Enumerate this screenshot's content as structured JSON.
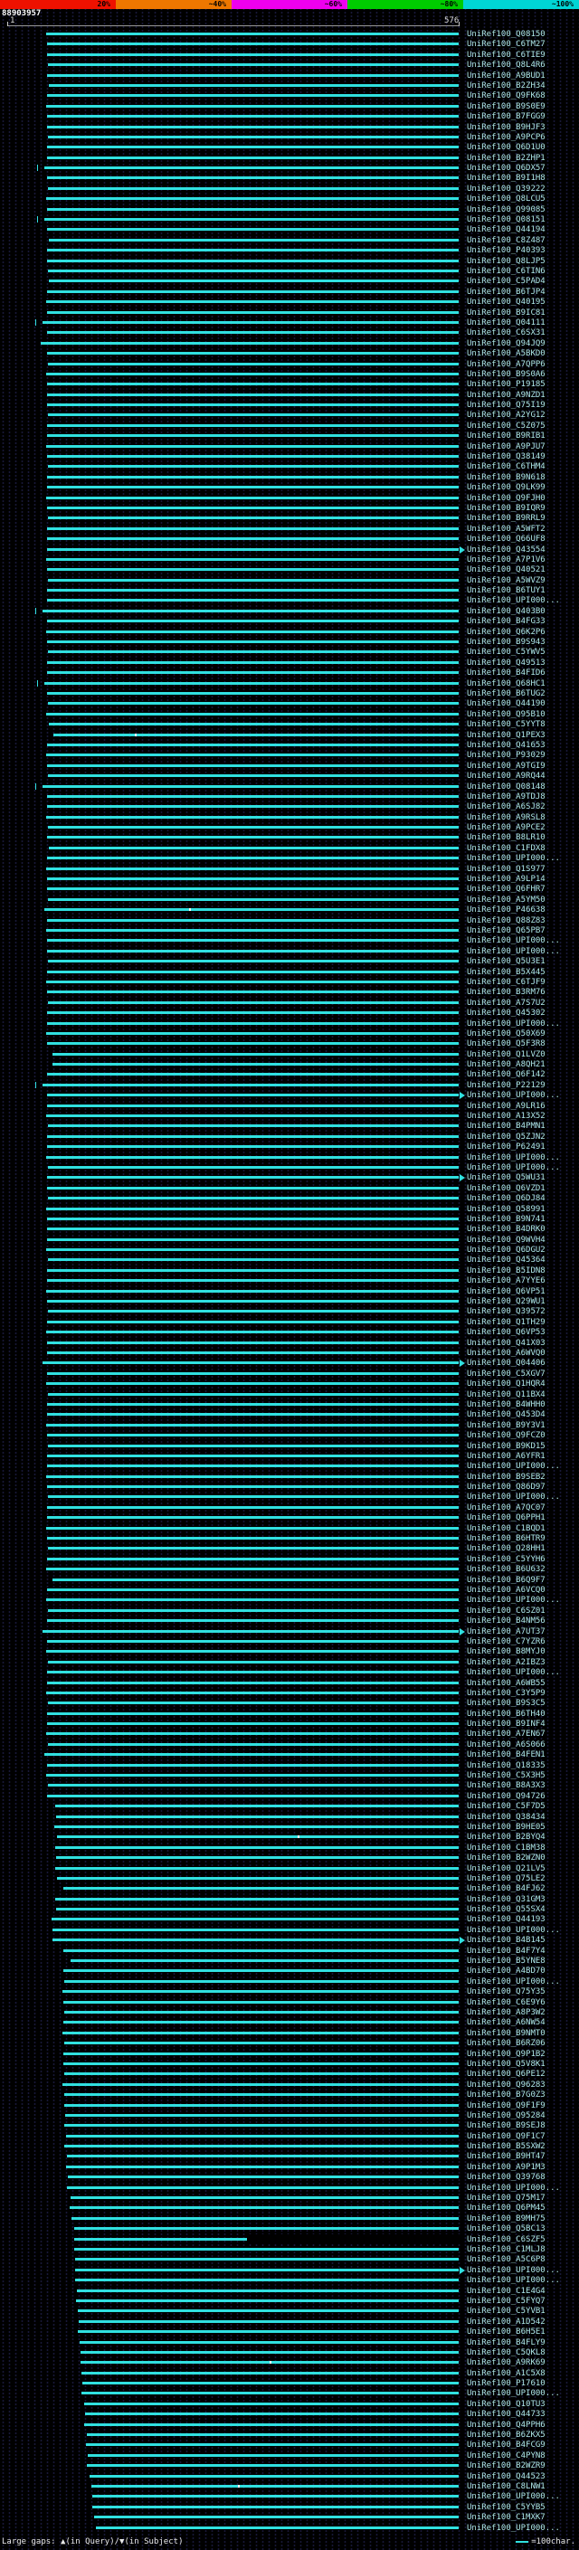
{
  "colors": {
    "background": "#000000",
    "pattern_dot": "#181838",
    "bar": "#30e0e0",
    "label": "#aee8e8",
    "ruler": "#9a9a9a",
    "scale_text": "#000000",
    "job_id_text": "#ffffff",
    "gap_dot": "#ffffff"
  },
  "chart_data": {
    "type": "bar",
    "orientation": "horizontal",
    "title": "BLAST hit graphical overview",
    "query_range": [
      1,
      576
    ],
    "job_id": "88903957",
    "ruler": {
      "start_label": "1",
      "end_label": "576"
    },
    "identity_scale": {
      "segments": [
        {
          "label": "20%",
          "color": "#ee1100"
        },
        {
          "label": "~40%",
          "color": "#ee7700"
        },
        {
          "label": "~60%",
          "color": "#ee00ee"
        },
        {
          "label": "~80%",
          "color": "#00cc00"
        },
        {
          "label": "~100%",
          "color": "#00d5d5"
        }
      ]
    },
    "legend": {
      "gaps_label": "Large gaps: ▲(in Query)/▼(in Subject)",
      "scale_label": "=100char."
    },
    "hits": [
      {
        "label": "UniRef100_Q08150",
        "start": 49
      },
      {
        "label": "UniRef100_C6TM27",
        "start": 50
      },
      {
        "label": "UniRef100_C6TIE9",
        "start": 50
      },
      {
        "label": "UniRef100_Q8L4R6",
        "start": 51
      },
      {
        "label": "UniRef100_A9BUD1",
        "start": 50
      },
      {
        "label": "UniRef100_B2ZH34",
        "start": 52
      },
      {
        "label": "UniRef100_Q9FK68",
        "start": 50
      },
      {
        "label": "UniRef100_B9S0E9",
        "start": 49
      },
      {
        "label": "UniRef100_B7FGG9",
        "start": 50
      },
      {
        "label": "UniRef100_B9HJF3",
        "start": 50
      },
      {
        "label": "UniRef100_A9PCP6",
        "start": 51
      },
      {
        "label": "UniRef100_Q6D1U0",
        "start": 50
      },
      {
        "label": "UniRef100_B2ZHP1",
        "start": 50
      },
      {
        "label": "UniRef100_Q6DX57",
        "start": 46,
        "tick": true
      },
      {
        "label": "UniRef100_B9I1H8",
        "start": 50
      },
      {
        "label": "UniRef100_Q39222",
        "start": 51
      },
      {
        "label": "UniRef100_Q8LCU5",
        "start": 49
      },
      {
        "label": "UniRef100_Q99085",
        "start": 50
      },
      {
        "label": "UniRef100_Q08151",
        "start": 46,
        "tick": true
      },
      {
        "label": "UniRef100_Q44194",
        "start": 50
      },
      {
        "label": "UniRef100_C8Z487",
        "start": 52
      },
      {
        "label": "UniRef100_P40393",
        "start": 50
      },
      {
        "label": "UniRef100_Q8LJP5",
        "start": 50
      },
      {
        "label": "UniRef100_C6TIN6",
        "start": 51
      },
      {
        "label": "UniRef100_C5PAD4",
        "start": 52
      },
      {
        "label": "UniRef100_B6TJP4",
        "start": 50
      },
      {
        "label": "UniRef100_Q40195",
        "start": 49
      },
      {
        "label": "UniRef100_B9IC81",
        "start": 50
      },
      {
        "label": "UniRef100_Q04111",
        "start": 44,
        "tick": true
      },
      {
        "label": "UniRef100_C6SX31",
        "start": 50
      },
      {
        "label": "UniRef100_Q94JQ9",
        "start": 42
      },
      {
        "label": "UniRef100_A5BKD0",
        "start": 50
      },
      {
        "label": "UniRef100_A7QPP6",
        "start": 51
      },
      {
        "label": "UniRef100_B9S0A6",
        "start": 49
      },
      {
        "label": "UniRef100_P19185",
        "start": 50
      },
      {
        "label": "UniRef100_A9NZD1",
        "start": 50
      },
      {
        "label": "UniRef100_Q75I19",
        "start": 50
      },
      {
        "label": "UniRef100_A2YG12",
        "start": 51
      },
      {
        "label": "UniRef100_C5Z075",
        "start": 50
      },
      {
        "label": "UniRef100_B9RIB1",
        "start": 50
      },
      {
        "label": "UniRef100_A9PJU7",
        "start": 49
      },
      {
        "label": "UniRef100_Q38149",
        "start": 50
      },
      {
        "label": "UniRef100_C6THM4",
        "start": 51
      },
      {
        "label": "UniRef100_B9N618",
        "start": 50
      },
      {
        "label": "UniRef100_Q9LK99",
        "start": 50
      },
      {
        "label": "UniRef100_Q9FJH0",
        "start": 49
      },
      {
        "label": "UniRef100_B9IQR9",
        "start": 50
      },
      {
        "label": "UniRef100_B9RRL9",
        "start": 51
      },
      {
        "label": "UniRef100_A5WFT2",
        "start": 50
      },
      {
        "label": "UniRef100_Q66UF8",
        "start": 50
      },
      {
        "label": "UniRef100_Q43554",
        "start": 50,
        "arrow": true
      },
      {
        "label": "UniRef100_A7P1V6",
        "start": 49
      },
      {
        "label": "UniRef100_Q40521",
        "start": 50
      },
      {
        "label": "UniRef100_A5WVZ9",
        "start": 51
      },
      {
        "label": "UniRef100_B6TUY1",
        "start": 50
      },
      {
        "label": "UniRef100_UPI000...",
        "start": 50
      },
      {
        "label": "UniRef100_Q403B0",
        "start": 44,
        "tick": true
      },
      {
        "label": "UniRef100_B4FG33",
        "start": 50
      },
      {
        "label": "UniRef100_Q6K2P6",
        "start": 49
      },
      {
        "label": "UniRef100_B9S943",
        "start": 50
      },
      {
        "label": "UniRef100_C5YWV5",
        "start": 51
      },
      {
        "label": "UniRef100_Q49513",
        "start": 50
      },
      {
        "label": "UniRef100_B4FID6",
        "start": 50
      },
      {
        "label": "UniRef100_Q68HC1",
        "start": 46,
        "tick": true
      },
      {
        "label": "UniRef100_B6TUG2",
        "start": 50
      },
      {
        "label": "UniRef100_Q44190",
        "start": 51
      },
      {
        "label": "UniRef100_Q95B10",
        "start": 49
      },
      {
        "label": "UniRef100_C5YYT8",
        "start": 52
      },
      {
        "label": "UniRef100_Q1PEX3",
        "start": 58,
        "dots": [
          0.2
        ]
      },
      {
        "label": "UniRef100_Q41653",
        "start": 50
      },
      {
        "label": "UniRef100_P93029",
        "start": 49
      },
      {
        "label": "UniRef100_A9TGI9",
        "start": 50
      },
      {
        "label": "UniRef100_A9RQ44",
        "start": 51
      },
      {
        "label": "UniRef100_Q08148",
        "start": 44,
        "tick": true
      },
      {
        "label": "UniRef100_A9TDJ8",
        "start": 50
      },
      {
        "label": "UniRef100_A6SJ82",
        "start": 50
      },
      {
        "label": "UniRef100_A9RSL8",
        "start": 49
      },
      {
        "label": "UniRef100_A9PCE2",
        "start": 51
      },
      {
        "label": "UniRef100_B8LR10",
        "start": 50
      },
      {
        "label": "UniRef100_C1FDX8",
        "start": 52
      },
      {
        "label": "UniRef100_UPI000...",
        "start": 50
      },
      {
        "label": "UniRef100_Q1S977",
        "start": 49
      },
      {
        "label": "UniRef100_A9LP14",
        "start": 50
      },
      {
        "label": "UniRef100_Q6FHR7",
        "start": 50
      },
      {
        "label": "UniRef100_A5YM50",
        "start": 51
      },
      {
        "label": "UniRef100_P46638",
        "start": 46,
        "dots": [
          0.35
        ]
      },
      {
        "label": "UniRef100_Q88Z83",
        "start": 50
      },
      {
        "label": "UniRef100_Q65PB7",
        "start": 49
      },
      {
        "label": "UniRef100_UPI000...",
        "start": 50
      },
      {
        "label": "UniRef100_UPI000...",
        "start": 50
      },
      {
        "label": "UniRef100_Q5U3E1",
        "start": 51
      },
      {
        "label": "UniRef100_B5X445",
        "start": 50
      },
      {
        "label": "UniRef100_C6TJF9",
        "start": 49
      },
      {
        "label": "UniRef100_B3RM76",
        "start": 50
      },
      {
        "label": "UniRef100_A7S7U2",
        "start": 51
      },
      {
        "label": "UniRef100_Q45302",
        "start": 50
      },
      {
        "label": "UniRef100_UPI000...",
        "start": 50
      },
      {
        "label": "UniRef100_Q50X69",
        "start": 49
      },
      {
        "label": "UniRef100_Q5F3R8",
        "start": 50
      },
      {
        "label": "UniRef100_Q1LVZ0",
        "start": 57
      },
      {
        "label": "UniRef100_A8QH21",
        "start": 57
      },
      {
        "label": "UniRef100_Q6F142",
        "start": 50
      },
      {
        "label": "UniRef100_P22129",
        "start": 44,
        "tick": true
      },
      {
        "label": "UniRef100_UPI000...",
        "start": 50,
        "arrow": true
      },
      {
        "label": "UniRef100_A9LR16",
        "start": 50
      },
      {
        "label": "UniRef100_A13X52",
        "start": 49
      },
      {
        "label": "UniRef100_B4PMN1",
        "start": 51
      },
      {
        "label": "UniRef100_Q5ZJN2",
        "start": 50
      },
      {
        "label": "UniRef100_P62491",
        "start": 50
      },
      {
        "label": "UniRef100_UPI000...",
        "start": 49
      },
      {
        "label": "UniRef100_UPI000...",
        "start": 51
      },
      {
        "label": "UniRef100_Q5WU31",
        "start": 50,
        "arrow": true
      },
      {
        "label": "UniRef100_Q6VZD1",
        "start": 50
      },
      {
        "label": "UniRef100_Q6DJ84",
        "start": 51
      },
      {
        "label": "UniRef100_Q58991",
        "start": 49
      },
      {
        "label": "UniRef100_B9N741",
        "start": 50
      },
      {
        "label": "UniRef100_B4DRK0",
        "start": 50
      },
      {
        "label": "UniRef100_Q9WVH4",
        "start": 50
      },
      {
        "label": "UniRef100_Q6DGU2",
        "start": 49
      },
      {
        "label": "UniRef100_Q45364",
        "start": 51
      },
      {
        "label": "UniRef100_B5IDN8",
        "start": 50
      },
      {
        "label": "UniRef100_A7YYE6",
        "start": 50
      },
      {
        "label": "UniRef100_Q6VP51",
        "start": 49
      },
      {
        "label": "UniRef100_Q29WU1",
        "start": 50
      },
      {
        "label": "UniRef100_Q39572",
        "start": 51
      },
      {
        "label": "UniRef100_Q1TH29",
        "start": 50
      },
      {
        "label": "UniRef100_Q6VP53",
        "start": 49
      },
      {
        "label": "UniRef100_Q41X03",
        "start": 50
      },
      {
        "label": "UniRef100_A6WVQ0",
        "start": 50
      },
      {
        "label": "UniRef100_Q04406",
        "start": 44,
        "arrow": true
      },
      {
        "label": "UniRef100_C5XGV7",
        "start": 50
      },
      {
        "label": "UniRef100_Q1HQR4",
        "start": 49
      },
      {
        "label": "UniRef100_Q11BX4",
        "start": 51
      },
      {
        "label": "UniRef100_B4WHH0",
        "start": 50
      },
      {
        "label": "UniRef100_Q453D4",
        "start": 50
      },
      {
        "label": "UniRef100_B9Y3V1",
        "start": 49
      },
      {
        "label": "UniRef100_Q9FCZ0",
        "start": 50
      },
      {
        "label": "UniRef100_B9KD15",
        "start": 51
      },
      {
        "label": "UniRef100_A6YFR1",
        "start": 50
      },
      {
        "label": "UniRef100_UPI000...",
        "start": 50
      },
      {
        "label": "UniRef100_B9SEB2",
        "start": 49
      },
      {
        "label": "UniRef100_Q86D97",
        "start": 50
      },
      {
        "label": "UniRef100_UPI000...",
        "start": 51
      },
      {
        "label": "UniRef100_A7QC07",
        "start": 50
      },
      {
        "label": "UniRef100_Q6PPH1",
        "start": 50
      },
      {
        "label": "UniRef100_C1BQD1",
        "start": 49
      },
      {
        "label": "UniRef100_B6HTR9",
        "start": 50
      },
      {
        "label": "UniRef100_Q28HH1",
        "start": 51
      },
      {
        "label": "UniRef100_C5YYH6",
        "start": 50
      },
      {
        "label": "UniRef100_B6U632",
        "start": 49
      },
      {
        "label": "UniRef100_B6Q9F7",
        "start": 57
      },
      {
        "label": "UniRef100_A6VCQ0",
        "start": 50
      },
      {
        "label": "UniRef100_UPI000...",
        "start": 49
      },
      {
        "label": "UniRef100_C6SZ01",
        "start": 51
      },
      {
        "label": "UniRef100_B4NM56",
        "start": 50
      },
      {
        "label": "UniRef100_A7UT37",
        "start": 44,
        "arrow": true
      },
      {
        "label": "UniRef100_C7YZR6",
        "start": 50
      },
      {
        "label": "UniRef100_B8MYJ0",
        "start": 49
      },
      {
        "label": "UniRef100_A2IBZ3",
        "start": 51
      },
      {
        "label": "UniRef100_UPI000...",
        "start": 50
      },
      {
        "label": "UniRef100_A6WB55",
        "start": 50
      },
      {
        "label": "UniRef100_C3Y5P9",
        "start": 49
      },
      {
        "label": "UniRef100_B9S3C5",
        "start": 51
      },
      {
        "label": "UniRef100_B6TH40",
        "start": 50
      },
      {
        "label": "UniRef100_B9INF4",
        "start": 50
      },
      {
        "label": "UniRef100_A7EN67",
        "start": 49
      },
      {
        "label": "UniRef100_A6S066",
        "start": 51
      },
      {
        "label": "UniRef100_B4FEN1",
        "start": 46
      },
      {
        "label": "UniRef100_Q18335",
        "start": 50
      },
      {
        "label": "UniRef100_C5X3H5",
        "start": 49
      },
      {
        "label": "UniRef100_B8A3X3",
        "start": 51
      },
      {
        "label": "UniRef100_Q94726",
        "start": 50
      },
      {
        "label": "UniRef100_C5F7D5",
        "start": 60
      },
      {
        "label": "UniRef100_Q38434",
        "start": 61
      },
      {
        "label": "UniRef100_B9HE05",
        "start": 59
      },
      {
        "label": "UniRef100_B2BYQ4",
        "start": 62,
        "dots": [
          0.6
        ]
      },
      {
        "label": "UniRef100_C1BM38",
        "start": 60
      },
      {
        "label": "UniRef100_B2WZN0",
        "start": 61
      },
      {
        "label": "UniRef100_Q21LV5",
        "start": 60
      },
      {
        "label": "UniRef100_Q75LE2",
        "start": 62
      },
      {
        "label": "UniRef100_B4FJ62",
        "start": 70
      },
      {
        "label": "UniRef100_Q31GM3",
        "start": 60
      },
      {
        "label": "UniRef100_Q55SX4",
        "start": 61
      },
      {
        "label": "UniRef100_Q44193",
        "start": 55
      },
      {
        "label": "UniRef100_UPI000...",
        "start": 56
      },
      {
        "label": "UniRef100_B4B145",
        "start": 56,
        "arrow": true
      },
      {
        "label": "UniRef100_B4F7Y4",
        "start": 70
      },
      {
        "label": "UniRef100_B5YNE8",
        "start": 80
      },
      {
        "label": "UniRef100_A4BD70",
        "start": 70
      },
      {
        "label": "UniRef100_UPI000...",
        "start": 71
      },
      {
        "label": "UniRef100_Q75Y35",
        "start": 69
      },
      {
        "label": "UniRef100_C6E9Y6",
        "start": 70
      },
      {
        "label": "UniRef100_A8P3W2",
        "start": 72
      },
      {
        "label": "UniRef100_A6NW54",
        "start": 70
      },
      {
        "label": "UniRef100_B9NMT0",
        "start": 69
      },
      {
        "label": "UniRef100_B6RZ06",
        "start": 71
      },
      {
        "label": "UniRef100_Q9P1B2",
        "start": 70
      },
      {
        "label": "UniRef100_Q5V8K1",
        "start": 70
      },
      {
        "label": "UniRef100_Q6PE12",
        "start": 72
      },
      {
        "label": "UniRef100_Q96283",
        "start": 69
      },
      {
        "label": "UniRef100_B7G0Z3",
        "start": 71
      },
      {
        "label": "UniRef100_Q9F1F9",
        "start": 72
      },
      {
        "label": "UniRef100_Q95284",
        "start": 73
      },
      {
        "label": "UniRef100_B9SEJ8",
        "start": 72
      },
      {
        "label": "UniRef100_Q9F1C7",
        "start": 74
      },
      {
        "label": "UniRef100_B5SXW2",
        "start": 72
      },
      {
        "label": "UniRef100_B9HT47",
        "start": 75
      },
      {
        "label": "UniRef100_A9P1M3",
        "start": 74
      },
      {
        "label": "UniRef100_Q39768",
        "start": 76
      },
      {
        "label": "UniRef100_UPI000...",
        "start": 75
      },
      {
        "label": "UniRef100_Q75M17",
        "start": 80
      },
      {
        "label": "UniRef100_Q6PM45",
        "start": 79
      },
      {
        "label": "UniRef100_B9MH75",
        "start": 81
      },
      {
        "label": "UniRef100_Q5BC13",
        "start": 84
      },
      {
        "label": "UniRef100_C6SZF5",
        "start": 84,
        "end": 305,
        "blackout": true
      },
      {
        "label": "UniRef100_C1MLJ8",
        "start": 84
      },
      {
        "label": "UniRef100_A5C6P8",
        "start": 85
      },
      {
        "label": "UniRef100_UPI000...",
        "start": 85,
        "arrow": true
      },
      {
        "label": "UniRef100_UPI000...",
        "start": 86
      },
      {
        "label": "UniRef100_C1E4G4",
        "start": 88
      },
      {
        "label": "UniRef100_C5FYQ7",
        "start": 87
      },
      {
        "label": "UniRef100_C5YVB1",
        "start": 89
      },
      {
        "label": "UniRef100_A1D542",
        "start": 90
      },
      {
        "label": "UniRef100_B6H5E1",
        "start": 89
      },
      {
        "label": "UniRef100_B4FLY9",
        "start": 91
      },
      {
        "label": "UniRef100_C5QKL8",
        "start": 92
      },
      {
        "label": "UniRef100_A9RK69",
        "start": 92,
        "dots": [
          0.5
        ]
      },
      {
        "label": "UniRef100_A1C5X8",
        "start": 93
      },
      {
        "label": "UniRef100_P17610",
        "start": 95
      },
      {
        "label": "UniRef100_UPI000...",
        "start": 94
      },
      {
        "label": "UniRef100_Q10TU3",
        "start": 97
      },
      {
        "label": "UniRef100_Q44733",
        "start": 98
      },
      {
        "label": "UniRef100_Q4PPH6",
        "start": 97
      },
      {
        "label": "UniRef100_B6ZKX5",
        "start": 100
      },
      {
        "label": "UniRef100_B4FCG9",
        "start": 99
      },
      {
        "label": "UniRef100_C4PYN8",
        "start": 102
      },
      {
        "label": "UniRef100_B2WZR9",
        "start": 101
      },
      {
        "label": "UniRef100_Q44523",
        "start": 104
      },
      {
        "label": "UniRef100_C8LNW1",
        "start": 106,
        "dots": [
          0.4
        ]
      },
      {
        "label": "UniRef100_UPI000...",
        "start": 107
      },
      {
        "label": "UniRef100_C5YYB5",
        "start": 108
      },
      {
        "label": "UniRef100_C1MXK7",
        "start": 110
      },
      {
        "label": "UniRef100_UPI000...",
        "start": 112
      }
    ]
  }
}
